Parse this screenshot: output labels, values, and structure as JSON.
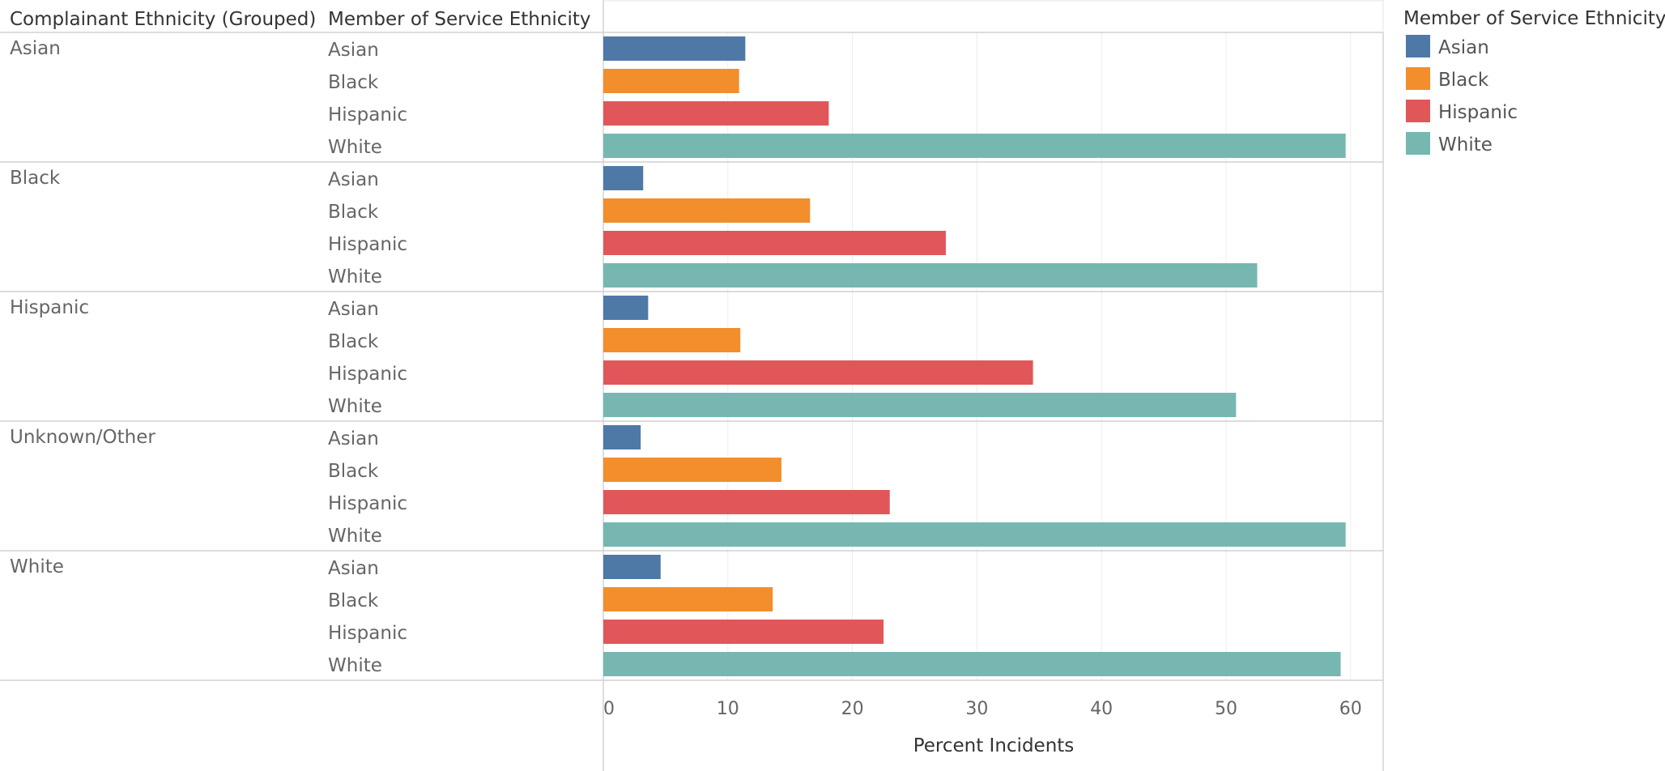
{
  "chart_data": {
    "type": "bar",
    "orientation": "horizontal",
    "header": {
      "group_col": "Complainant Ethnicity (Grouped)",
      "row_col": "Member of Service Ethnicity"
    },
    "xlabel": "Percent Incidents",
    "xlim": [
      0,
      62
    ],
    "xticks": [
      0,
      10,
      20,
      30,
      40,
      50,
      60
    ],
    "grid": true,
    "legend": {
      "title": "Member of Service Ethnicity",
      "placement": "top-right",
      "items": [
        {
          "name": "Asian",
          "color": "#4e79a7"
        },
        {
          "name": "Black",
          "color": "#f28e2b"
        },
        {
          "name": "Hispanic",
          "color": "#e15759"
        },
        {
          "name": "White",
          "color": "#76b7b2"
        }
      ]
    },
    "series_names": [
      "Asian",
      "Black",
      "Hispanic",
      "White"
    ],
    "groups": [
      {
        "name": "Asian",
        "values": [
          11.4,
          10.9,
          18.1,
          59.6
        ]
      },
      {
        "name": "Black",
        "values": [
          3.2,
          16.6,
          27.5,
          52.5
        ]
      },
      {
        "name": "Hispanic",
        "values": [
          3.6,
          11.0,
          34.5,
          50.8
        ]
      },
      {
        "name": "Unknown/Other",
        "values": [
          3.0,
          14.3,
          23.0,
          59.6
        ]
      },
      {
        "name": "White",
        "values": [
          4.6,
          13.6,
          22.5,
          59.2
        ]
      }
    ]
  }
}
